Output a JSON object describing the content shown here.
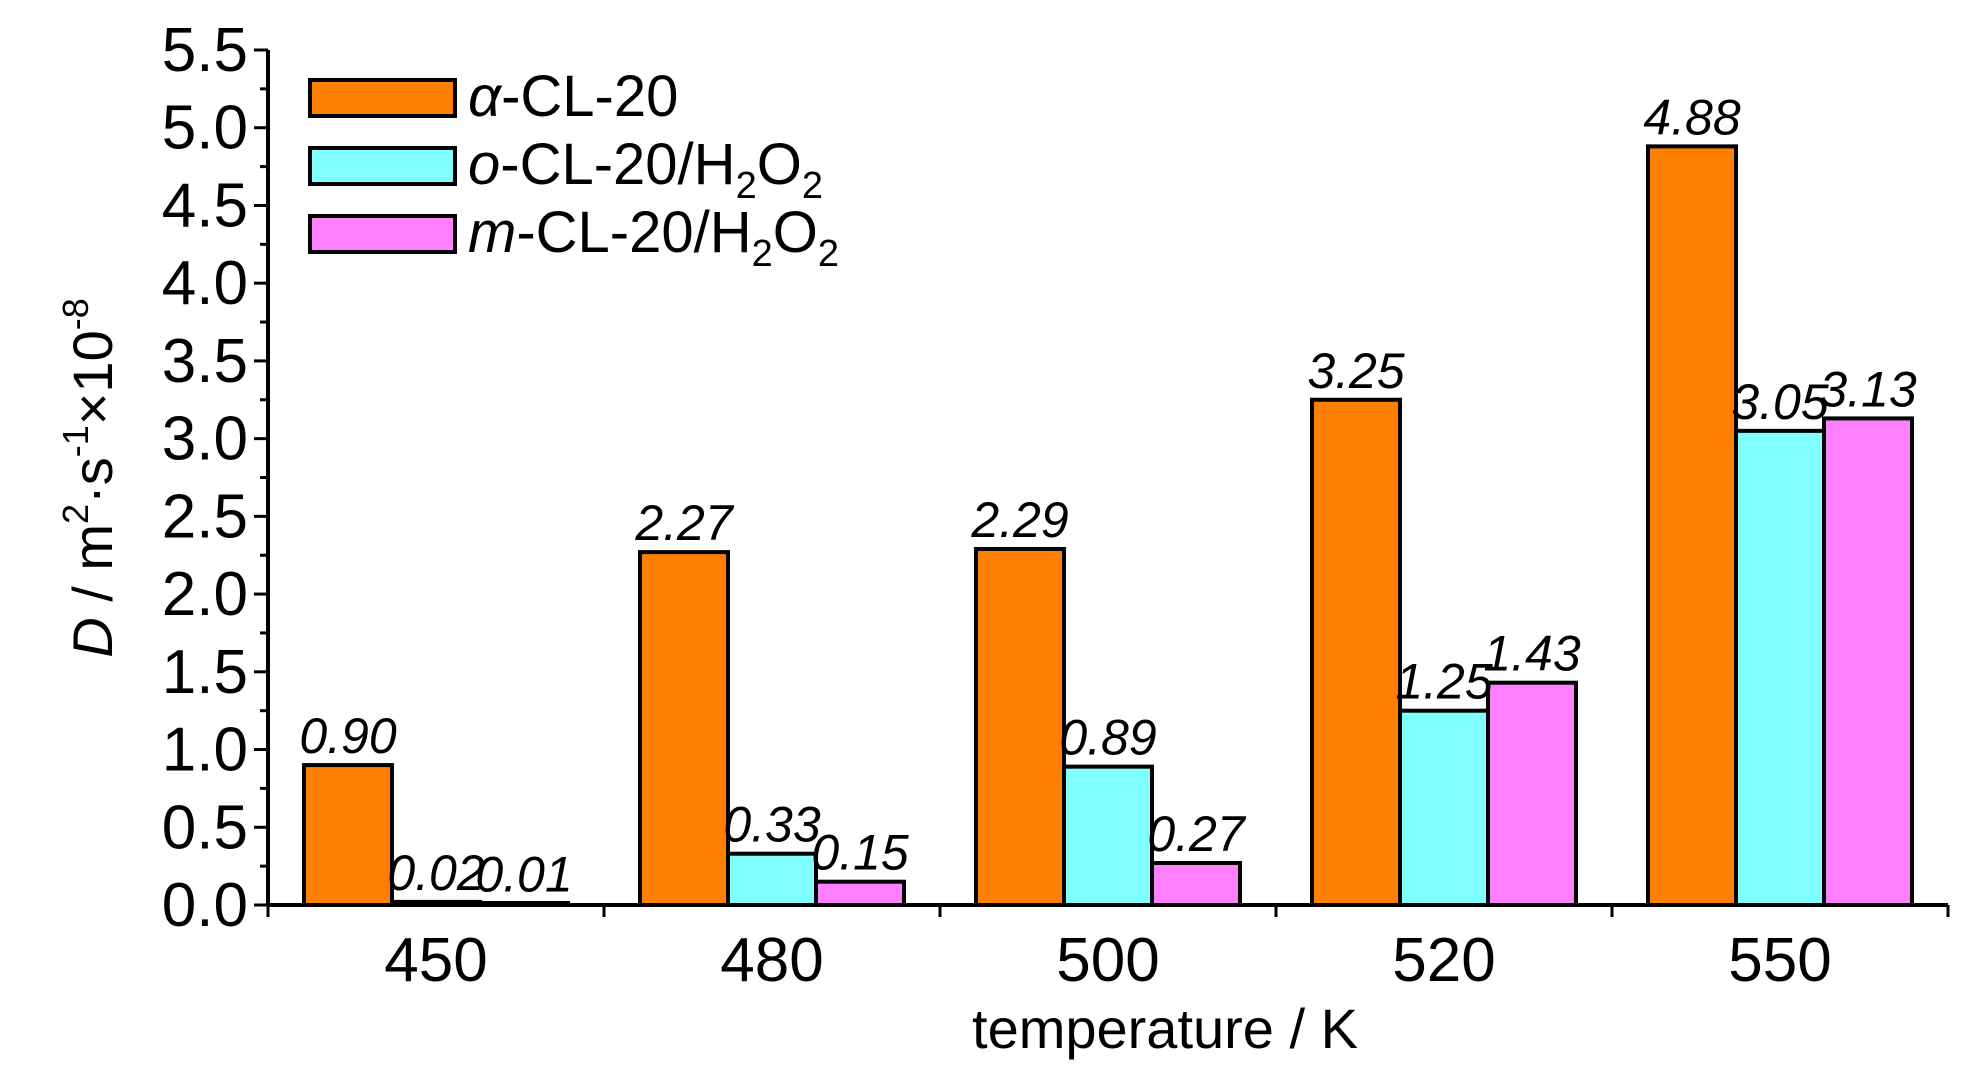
{
  "chart_data": {
    "type": "bar",
    "title": "",
    "xlabel": "temperature / K",
    "ylabel": "D / m²·s⁻¹×10⁻⁸",
    "ylabel_parts": {
      "var": "D",
      "unit_base": " / m",
      "sup1": "2",
      "dot_s": "·s",
      "sup2": "-1",
      "times": "×10",
      "sup3": "-8"
    },
    "categories": [
      "450",
      "480",
      "500",
      "520",
      "550"
    ],
    "ylim": [
      0,
      5.5
    ],
    "ytick_values": [
      0.0,
      0.5,
      1.0,
      1.5,
      2.0,
      2.5,
      3.0,
      3.5,
      4.0,
      4.5,
      5.0,
      5.5
    ],
    "ytick_labels": [
      "0.0",
      "0.5",
      "1.0",
      "1.5",
      "2.0",
      "2.5",
      "3.0",
      "3.5",
      "4.0",
      "4.5",
      "5.0",
      "5.5"
    ],
    "grid": false,
    "legend_position": "top-left",
    "series": [
      {
        "name": "α-CL-20",
        "color": "#FF7F00",
        "values": [
          0.9,
          2.27,
          2.29,
          3.25,
          4.88
        ],
        "labels": [
          "0.90",
          "2.27",
          "2.29",
          "3.25",
          "4.88"
        ],
        "legend_parts": {
          "prefix": "α",
          "main": "-CL-20",
          "h_sub": "",
          "o": "",
          "o_sub": ""
        }
      },
      {
        "name": "o-CL-20/H₂O₂",
        "color": "#80FFFF",
        "values": [
          0.02,
          0.33,
          0.89,
          1.25,
          3.05
        ],
        "labels": [
          "0.02",
          "0.33",
          "0.89",
          "1.25",
          "3.05"
        ],
        "legend_parts": {
          "prefix": "o",
          "main": "-CL-20/H",
          "h_sub": "2",
          "o": "O",
          "o_sub": "2"
        }
      },
      {
        "name": "m-CL-20/H₂O₂",
        "color": "#FF80FF",
        "values": [
          0.01,
          0.15,
          0.27,
          1.43,
          3.13
        ],
        "labels": [
          "0.01",
          "0.15",
          "0.27",
          "1.43",
          "3.13"
        ],
        "legend_parts": {
          "prefix": "m",
          "main": "-CL-20/H",
          "h_sub": "2",
          "o": "O",
          "o_sub": "2"
        }
      }
    ]
  }
}
